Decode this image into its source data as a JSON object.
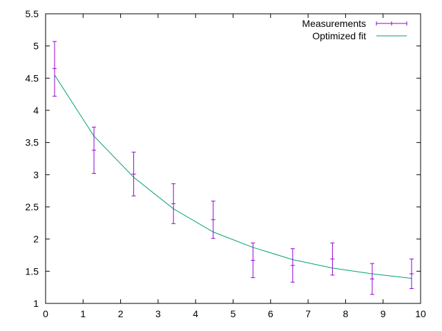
{
  "chart_data": {
    "type": "scatter",
    "title": "",
    "xlabel": "",
    "ylabel": "",
    "xlim": [
      0,
      10
    ],
    "ylim": [
      1,
      5.5
    ],
    "grid": false,
    "legend_position": "top-right",
    "x_ticks": [
      "0",
      "1",
      "2",
      "3",
      "4",
      "5",
      "6",
      "7",
      "8",
      "9",
      "10"
    ],
    "y_ticks": [
      "1",
      "1.5",
      "2",
      "2.5",
      "3",
      "3.5",
      "4",
      "4.5",
      "5",
      "5.5"
    ],
    "series": [
      {
        "name": "Measurements",
        "kind": "errorbars",
        "color": "#9400d3",
        "x": [
          0.24,
          1.29,
          2.35,
          3.41,
          4.47,
          5.53,
          6.59,
          7.65,
          8.71,
          9.76
        ],
        "y": [
          4.65,
          3.38,
          3.01,
          2.55,
          2.3,
          1.67,
          1.59,
          1.69,
          1.38,
          1.46
        ],
        "ylow": [
          4.22,
          3.02,
          2.67,
          2.24,
          2.01,
          1.4,
          1.33,
          1.44,
          1.14,
          1.23
        ],
        "yhigh": [
          5.07,
          3.74,
          3.35,
          2.86,
          2.59,
          1.94,
          1.85,
          1.94,
          1.62,
          1.69
        ]
      },
      {
        "name": "Optimized fit",
        "kind": "line",
        "color": "#009e73",
        "x": [
          0.24,
          1.29,
          2.35,
          3.41,
          4.47,
          5.53,
          6.59,
          7.65,
          8.71,
          9.76
        ],
        "y": [
          4.55,
          3.6,
          2.96,
          2.47,
          2.11,
          1.87,
          1.68,
          1.55,
          1.46,
          1.39
        ]
      }
    ]
  }
}
